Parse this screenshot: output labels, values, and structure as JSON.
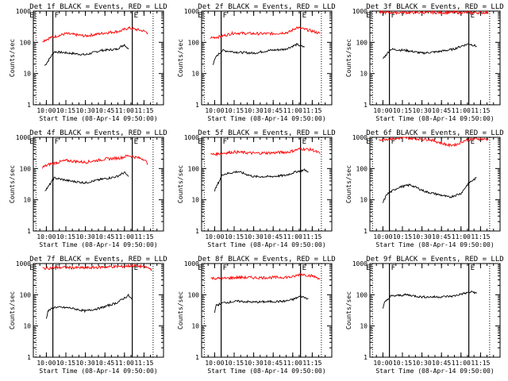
{
  "x_tick_labels": [
    "10:00",
    "10:15",
    "10:30",
    "10:45",
    "11:00",
    "11:15"
  ],
  "y_tick_labels": [
    "1",
    "10",
    "100",
    "1000"
  ],
  "ylabel": "Counts/sec",
  "xlabel": "Start Time (08-Apr-14 09:50:00)",
  "markers": {
    "start": "E",
    "flare": "F",
    "end": "E"
  },
  "colors": {
    "events": "#000000",
    "lld": "#ff0000"
  },
  "chart_data": [
    {
      "type": "line",
      "title": "Det 1f BLACK = Events, RED = LLD",
      "ylim": [
        1,
        1000
      ],
      "yscale": "log",
      "series": [
        {
          "color": "black",
          "values": [
            [
              9.98,
              18
            ],
            [
              10.02,
              25
            ],
            [
              10.1,
              50
            ],
            [
              10.3,
              45
            ],
            [
              10.5,
              40
            ],
            [
              10.7,
              55
            ],
            [
              10.9,
              60
            ],
            [
              11.0,
              85
            ],
            [
              11.05,
              60
            ]
          ]
        },
        {
          "color": "red",
          "values": [
            [
              9.95,
              110
            ],
            [
              10.05,
              140
            ],
            [
              10.25,
              190
            ],
            [
              10.5,
              160
            ],
            [
              10.75,
              200
            ],
            [
              10.95,
              230
            ],
            [
              11.05,
              290
            ],
            [
              11.25,
              230
            ],
            [
              11.3,
              200
            ]
          ]
        }
      ]
    },
    {
      "type": "line",
      "title": "Det 2f BLACK = Events, RED = LLD",
      "ylim": [
        1,
        1000
      ],
      "yscale": "log",
      "series": [
        {
          "color": "black",
          "values": [
            [
              9.98,
              20
            ],
            [
              10.02,
              35
            ],
            [
              10.1,
              55
            ],
            [
              10.3,
              48
            ],
            [
              10.5,
              45
            ],
            [
              10.7,
              55
            ],
            [
              10.9,
              60
            ],
            [
              11.05,
              85
            ],
            [
              11.15,
              70
            ]
          ]
        },
        {
          "color": "red",
          "values": [
            [
              9.95,
              140
            ],
            [
              10.05,
              150
            ],
            [
              10.25,
              200
            ],
            [
              10.5,
              190
            ],
            [
              10.75,
              190
            ],
            [
              10.95,
              210
            ],
            [
              11.05,
              300
            ],
            [
              11.25,
              230
            ],
            [
              11.35,
              190
            ]
          ]
        }
      ]
    },
    {
      "type": "line",
      "title": "Det 3f BLACK = Events, RED = LLD",
      "ylim": [
        1,
        1000
      ],
      "yscale": "log",
      "series": [
        {
          "color": "black",
          "values": [
            [
              10.0,
              30
            ],
            [
              10.1,
              60
            ],
            [
              10.3,
              55
            ],
            [
              10.5,
              45
            ],
            [
              10.7,
              50
            ],
            [
              10.9,
              60
            ],
            [
              11.0,
              75
            ],
            [
              11.1,
              90
            ],
            [
              11.2,
              75
            ]
          ]
        },
        {
          "color": "red",
          "values": [
            [
              9.95,
              900
            ],
            [
              10.5,
              900
            ],
            [
              11.35,
              900
            ]
          ]
        }
      ]
    },
    {
      "type": "line",
      "title": "Det 4f BLACK = Events, RED = LLD",
      "ylim": [
        1,
        1000
      ],
      "yscale": "log",
      "series": [
        {
          "color": "black",
          "values": [
            [
              9.98,
              20
            ],
            [
              10.02,
              25
            ],
            [
              10.1,
              50
            ],
            [
              10.3,
              40
            ],
            [
              10.5,
              35
            ],
            [
              10.7,
              45
            ],
            [
              10.9,
              55
            ],
            [
              11.0,
              75
            ],
            [
              11.05,
              55
            ]
          ]
        },
        {
          "color": "red",
          "values": [
            [
              9.95,
              110
            ],
            [
              10.05,
              140
            ],
            [
              10.25,
              180
            ],
            [
              10.5,
              160
            ],
            [
              10.75,
              200
            ],
            [
              10.95,
              220
            ],
            [
              11.05,
              260
            ],
            [
              11.25,
              200
            ],
            [
              11.3,
              140
            ]
          ]
        }
      ]
    },
    {
      "type": "line",
      "title": "Det 5f BLACK = Events, RED = LLD",
      "ylim": [
        1,
        1000
      ],
      "yscale": "log",
      "series": [
        {
          "color": "black",
          "values": [
            [
              10.0,
              20
            ],
            [
              10.02,
              25
            ],
            [
              10.1,
              65
            ],
            [
              10.3,
              80
            ],
            [
              10.5,
              55
            ],
            [
              10.7,
              55
            ],
            [
              10.9,
              60
            ],
            [
              11.05,
              80
            ],
            [
              11.15,
              90
            ],
            [
              11.2,
              80
            ]
          ]
        },
        {
          "color": "red",
          "values": [
            [
              9.95,
              280
            ],
            [
              10.05,
              300
            ],
            [
              10.25,
              340
            ],
            [
              10.5,
              310
            ],
            [
              10.75,
              320
            ],
            [
              10.95,
              340
            ],
            [
              11.1,
              430
            ],
            [
              11.25,
              400
            ],
            [
              11.35,
              300
            ]
          ]
        }
      ]
    },
    {
      "type": "line",
      "title": "Det 6f BLACK = Events, RED = LLD",
      "ylim": [
        1,
        1000
      ],
      "yscale": "log",
      "series": [
        {
          "color": "black",
          "values": [
            [
              10.0,
              8
            ],
            [
              10.05,
              15
            ],
            [
              10.2,
              25
            ],
            [
              10.35,
              30
            ],
            [
              10.55,
              18
            ],
            [
              10.75,
              14
            ],
            [
              10.85,
              12
            ],
            [
              11.0,
              16
            ],
            [
              11.1,
              35
            ],
            [
              11.2,
              50
            ]
          ]
        },
        {
          "color": "red",
          "values": [
            [
              9.95,
              850
            ],
            [
              10.1,
              900
            ],
            [
              10.3,
              950
            ],
            [
              10.6,
              850
            ],
            [
              10.85,
              550
            ],
            [
              10.95,
              600
            ],
            [
              11.05,
              800
            ],
            [
              11.2,
              900
            ],
            [
              11.35,
              850
            ]
          ]
        }
      ]
    },
    {
      "type": "line",
      "title": "Det 7f BLACK = Events, RED = LLD",
      "ylim": [
        1,
        1000
      ],
      "yscale": "log",
      "series": [
        {
          "color": "black",
          "values": [
            [
              10.0,
              18
            ],
            [
              10.02,
              30
            ],
            [
              10.1,
              40
            ],
            [
              10.3,
              38
            ],
            [
              10.5,
              30
            ],
            [
              10.7,
              38
            ],
            [
              10.9,
              55
            ],
            [
              11.05,
              95
            ],
            [
              11.1,
              70
            ]
          ]
        },
        {
          "color": "red",
          "values": [
            [
              9.95,
              700
            ],
            [
              10.2,
              750
            ],
            [
              10.5,
              720
            ],
            [
              10.75,
              780
            ],
            [
              10.95,
              800
            ],
            [
              11.1,
              850
            ],
            [
              11.25,
              800
            ],
            [
              11.35,
              650
            ]
          ]
        }
      ]
    },
    {
      "type": "line",
      "title": "Det 8f BLACK = Events, RED = LLD",
      "ylim": [
        1,
        1000
      ],
      "yscale": "log",
      "series": [
        {
          "color": "black",
          "values": [
            [
              10.0,
              28
            ],
            [
              10.02,
              45
            ],
            [
              10.1,
              55
            ],
            [
              10.3,
              62
            ],
            [
              10.5,
              58
            ],
            [
              10.7,
              60
            ],
            [
              10.9,
              62
            ],
            [
              11.0,
              70
            ],
            [
              11.1,
              90
            ],
            [
              11.2,
              75
            ]
          ]
        },
        {
          "color": "red",
          "values": [
            [
              9.95,
              340
            ],
            [
              10.1,
              330
            ],
            [
              10.3,
              360
            ],
            [
              10.55,
              350
            ],
            [
              10.8,
              360
            ],
            [
              11.0,
              370
            ],
            [
              11.1,
              460
            ],
            [
              11.25,
              400
            ],
            [
              11.35,
              330
            ]
          ]
        }
      ]
    },
    {
      "type": "line",
      "title": "Det 9f BLACK = Events, RED = LLD",
      "ylim": [
        1,
        1000
      ],
      "yscale": "log",
      "series": [
        {
          "color": "black",
          "values": [
            [
              10.0,
              35
            ],
            [
              10.02,
              55
            ],
            [
              10.1,
              90
            ],
            [
              10.3,
              100
            ],
            [
              10.5,
              85
            ],
            [
              10.7,
              85
            ],
            [
              10.9,
              90
            ],
            [
              11.0,
              105
            ],
            [
              11.15,
              125
            ],
            [
              11.2,
              110
            ]
          ]
        }
      ]
    }
  ]
}
